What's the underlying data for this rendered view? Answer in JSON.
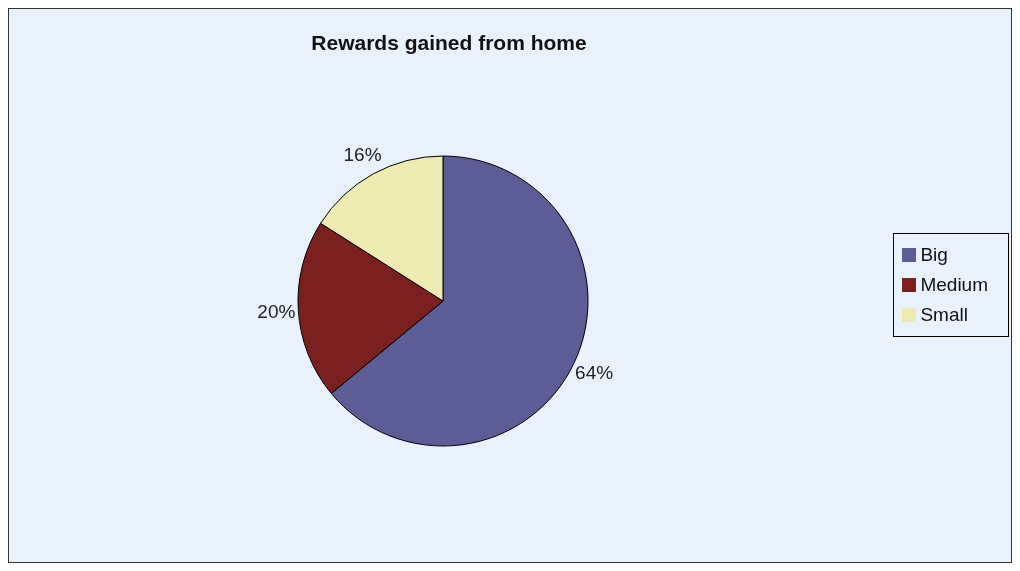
{
  "chart_data": {
    "type": "pie",
    "title": "Rewards gained from home",
    "categories": [
      "Big",
      "Medium",
      "Small"
    ],
    "values": [
      64,
      20,
      16
    ],
    "value_labels": [
      "64%",
      "20%",
      "16%"
    ],
    "colors": [
      "#5c5c96",
      "#7b1f1f",
      "#eeebb2"
    ],
    "legend": "right"
  }
}
